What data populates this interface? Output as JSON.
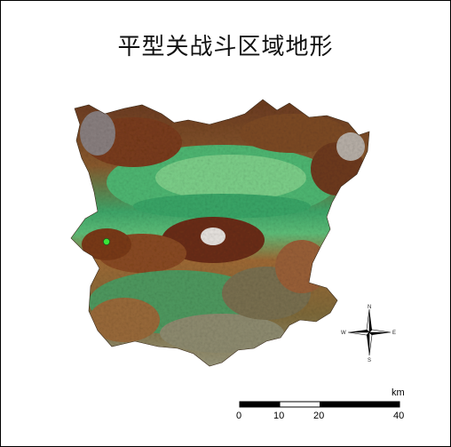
{
  "map": {
    "title": "平型关战斗区域地形",
    "point_color": "#39e639"
  },
  "compass": {
    "north": "N",
    "south": "S",
    "east": "E",
    "west": "W"
  },
  "scale": {
    "unit": "km",
    "ticks": [
      "0",
      "10",
      "20",
      "40"
    ]
  }
}
